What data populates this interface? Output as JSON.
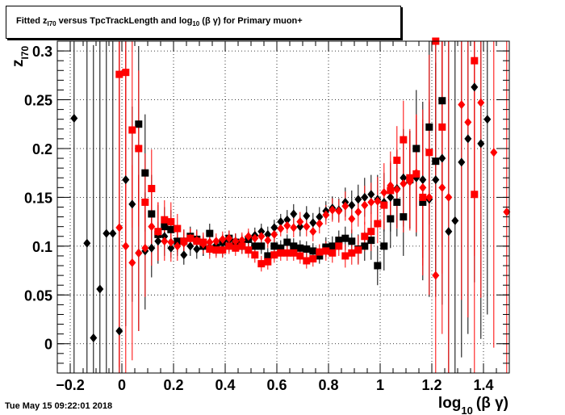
{
  "title": {
    "prefix": "Fitted  z",
    "sub": "I70",
    "middle": "  versus TpcTrackLength and log",
    "sub2": "10",
    "suffix": " (β γ) for Primary muon+"
  },
  "datestamp": "Tue May 15 09:22:01 2018",
  "colors": {
    "black_series": "#000000",
    "red_series": "#ff0000",
    "grid": "#000000",
    "frame": "#000000"
  },
  "chart_data": {
    "type": "scatter",
    "xlabel": "log",
    "xlabel_sub": "10",
    "xlabel_suffix": "(β γ)",
    "ylabel": "z",
    "ylabel_sub": "I70",
    "xlim": [
      -0.25,
      1.5
    ],
    "ylim": [
      -0.03,
      0.31
    ],
    "xticks": [
      -0.2,
      0,
      0.2,
      0.4,
      0.6,
      0.8,
      1,
      1.2,
      1.4
    ],
    "xtick_labels": [
      "−0.2",
      "0",
      "0.2",
      "0.4",
      "0.6",
      "0.8",
      "1",
      "1.2",
      "1.4"
    ],
    "yticks": [
      0,
      0.05,
      0.1,
      0.15,
      0.2,
      0.25,
      0.3
    ],
    "ytick_labels": [
      "0",
      "0.05",
      "0.1",
      "0.15",
      "0.2",
      "0.25",
      "0.3"
    ],
    "grid": true,
    "series": [
      {
        "marker": "diamond",
        "color": "#000000",
        "points": [
          [
            -0.185,
            0.231,
            0.4
          ],
          [
            -0.135,
            0.103,
            0.4
          ],
          [
            -0.11,
            0.006,
            0.3
          ],
          [
            -0.085,
            0.056,
            0.3
          ],
          [
            -0.06,
            0.113,
            0.3
          ],
          [
            -0.035,
            0.113,
            0.3
          ],
          [
            -0.01,
            0.013,
            0.3
          ],
          [
            0.015,
            0.168,
            0.15
          ],
          [
            0.04,
            0.143,
            0.1
          ],
          [
            0.065,
            0.093,
            0.08
          ],
          [
            0.09,
            0.095,
            0.06
          ],
          [
            0.115,
            0.098,
            0.03
          ],
          [
            0.14,
            0.105,
            0.02
          ],
          [
            0.165,
            0.11,
            0.02
          ],
          [
            0.19,
            0.098,
            0.01
          ],
          [
            0.215,
            0.104,
            0.01
          ],
          [
            0.24,
            0.091,
            0.01
          ],
          [
            0.265,
            0.1,
            0.01
          ],
          [
            0.29,
            0.097,
            0.01
          ],
          [
            0.315,
            0.1,
            0.01
          ],
          [
            0.34,
            0.099,
            0.008
          ],
          [
            0.365,
            0.101,
            0.008
          ],
          [
            0.39,
            0.097,
            0.008
          ],
          [
            0.415,
            0.102,
            0.008
          ],
          [
            0.44,
            0.105,
            0.008
          ],
          [
            0.465,
            0.104,
            0.008
          ],
          [
            0.49,
            0.107,
            0.008
          ],
          [
            0.515,
            0.111,
            0.008
          ],
          [
            0.54,
            0.115,
            0.008
          ],
          [
            0.565,
            0.112,
            0.008
          ],
          [
            0.59,
            0.119,
            0.008
          ],
          [
            0.615,
            0.125,
            0.008
          ],
          [
            0.64,
            0.127,
            0.01
          ],
          [
            0.665,
            0.133,
            0.01
          ],
          [
            0.69,
            0.12,
            0.01
          ],
          [
            0.715,
            0.131,
            0.01
          ],
          [
            0.74,
            0.124,
            0.01
          ],
          [
            0.765,
            0.13,
            0.01
          ],
          [
            0.79,
            0.136,
            0.01
          ],
          [
            0.815,
            0.139,
            0.012
          ],
          [
            0.84,
            0.137,
            0.012
          ],
          [
            0.865,
            0.145,
            0.015
          ],
          [
            0.89,
            0.142,
            0.015
          ],
          [
            0.915,
            0.148,
            0.015
          ],
          [
            0.94,
            0.15,
            0.02
          ],
          [
            0.965,
            0.153,
            0.02
          ],
          [
            0.99,
            0.148,
            0.025
          ],
          [
            1.015,
            0.145,
            0.03
          ],
          [
            1.04,
            0.15,
            0.035
          ],
          [
            1.065,
            0.159,
            0.04
          ],
          [
            1.09,
            0.17,
            0.05
          ],
          [
            1.115,
            0.168,
            0.05
          ],
          [
            1.14,
            0.17,
            0.06
          ],
          [
            1.165,
            0.168,
            0.08
          ],
          [
            1.19,
            0.148,
            0.1
          ],
          [
            1.215,
            0.168,
            0.12
          ],
          [
            1.24,
            0.19,
            0.15
          ],
          [
            1.265,
            0.115,
            0.2
          ],
          [
            1.29,
            0.126,
            0.2
          ],
          [
            1.315,
            0.186,
            0.2
          ],
          [
            1.34,
            0.21,
            0.2
          ],
          [
            1.365,
            0.263,
            0.2
          ],
          [
            1.39,
            0.205,
            0.2
          ],
          [
            1.415,
            0.23,
            0.2
          ]
        ]
      },
      {
        "marker": "square",
        "color": "#000000",
        "points": [
          [
            0.065,
            0.225,
            0.08
          ],
          [
            0.09,
            0.175,
            0.06
          ],
          [
            0.115,
            0.133,
            0.04
          ],
          [
            0.14,
            0.112,
            0.03
          ],
          [
            0.165,
            0.12,
            0.02
          ],
          [
            0.19,
            0.117,
            0.02
          ],
          [
            0.215,
            0.105,
            0.015
          ],
          [
            0.24,
            0.105,
            0.012
          ],
          [
            0.265,
            0.11,
            0.01
          ],
          [
            0.29,
            0.107,
            0.01
          ],
          [
            0.315,
            0.1,
            0.01
          ],
          [
            0.34,
            0.113,
            0.01
          ],
          [
            0.365,
            0.098,
            0.008
          ],
          [
            0.39,
            0.104,
            0.008
          ],
          [
            0.415,
            0.108,
            0.008
          ],
          [
            0.44,
            0.104,
            0.008
          ],
          [
            0.465,
            0.1,
            0.008
          ],
          [
            0.49,
            0.107,
            0.008
          ],
          [
            0.515,
            0.1,
            0.008
          ],
          [
            0.54,
            0.1,
            0.008
          ],
          [
            0.565,
            0.09,
            0.008
          ],
          [
            0.59,
            0.1,
            0.008
          ],
          [
            0.615,
            0.098,
            0.008
          ],
          [
            0.64,
            0.104,
            0.008
          ],
          [
            0.665,
            0.1,
            0.008
          ],
          [
            0.69,
            0.098,
            0.008
          ],
          [
            0.715,
            0.097,
            0.008
          ],
          [
            0.74,
            0.095,
            0.008
          ],
          [
            0.765,
            0.09,
            0.008
          ],
          [
            0.79,
            0.099,
            0.01
          ],
          [
            0.815,
            0.1,
            0.01
          ],
          [
            0.84,
            0.106,
            0.01
          ],
          [
            0.865,
            0.108,
            0.012
          ],
          [
            0.89,
            0.105,
            0.012
          ],
          [
            0.915,
            0.097,
            0.015
          ],
          [
            0.94,
            0.1,
            0.015
          ],
          [
            0.965,
            0.106,
            0.02
          ],
          [
            0.99,
            0.08,
            0.02
          ],
          [
            1.015,
            0.1,
            0.025
          ],
          [
            1.04,
            0.128,
            0.03
          ],
          [
            1.065,
            0.145,
            0.035
          ],
          [
            1.09,
            0.13,
            0.04
          ],
          [
            1.115,
            0.168,
            0.05
          ],
          [
            1.14,
            0.2,
            0.06
          ],
          [
            1.165,
            0.145,
            0.08
          ],
          [
            1.19,
            0.222,
            0.1
          ],
          [
            1.215,
            0.187,
            0.12
          ],
          [
            1.24,
            0.249,
            0.15
          ]
        ]
      },
      {
        "marker": "diamond",
        "color": "#ff0000",
        "points": [
          [
            -0.01,
            0.119,
            0.3
          ],
          [
            0.015,
            0.1,
            0.2
          ],
          [
            0.04,
            0.083,
            0.1
          ],
          [
            0.065,
            0.093,
            0.08
          ],
          [
            0.09,
            0.098,
            0.05
          ],
          [
            0.115,
            0.12,
            0.04
          ],
          [
            0.14,
            0.115,
            0.03
          ],
          [
            0.165,
            0.105,
            0.02
          ],
          [
            0.19,
            0.104,
            0.02
          ],
          [
            0.215,
            0.1,
            0.015
          ],
          [
            0.24,
            0.103,
            0.012
          ],
          [
            0.265,
            0.108,
            0.01
          ],
          [
            0.29,
            0.106,
            0.01
          ],
          [
            0.315,
            0.102,
            0.01
          ],
          [
            0.34,
            0.104,
            0.01
          ],
          [
            0.365,
            0.105,
            0.008
          ],
          [
            0.39,
            0.107,
            0.008
          ],
          [
            0.415,
            0.108,
            0.008
          ],
          [
            0.44,
            0.105,
            0.008
          ],
          [
            0.465,
            0.106,
            0.008
          ],
          [
            0.49,
            0.11,
            0.008
          ],
          [
            0.515,
            0.108,
            0.008
          ],
          [
            0.54,
            0.11,
            0.008
          ],
          [
            0.565,
            0.106,
            0.008
          ],
          [
            0.59,
            0.112,
            0.008
          ],
          [
            0.615,
            0.118,
            0.008
          ],
          [
            0.64,
            0.121,
            0.008
          ],
          [
            0.665,
            0.119,
            0.01
          ],
          [
            0.69,
            0.125,
            0.01
          ],
          [
            0.715,
            0.12,
            0.01
          ],
          [
            0.74,
            0.115,
            0.01
          ],
          [
            0.765,
            0.123,
            0.01
          ],
          [
            0.79,
            0.132,
            0.01
          ],
          [
            0.815,
            0.137,
            0.012
          ],
          [
            0.84,
            0.136,
            0.012
          ],
          [
            0.865,
            0.141,
            0.015
          ],
          [
            0.89,
            0.128,
            0.015
          ],
          [
            0.915,
            0.135,
            0.015
          ],
          [
            0.94,
            0.142,
            0.02
          ],
          [
            0.965,
            0.145,
            0.02
          ],
          [
            0.99,
            0.146,
            0.025
          ],
          [
            1.015,
            0.155,
            0.03
          ],
          [
            1.04,
            0.162,
            0.035
          ],
          [
            1.065,
            0.158,
            0.04
          ],
          [
            1.09,
            0.164,
            0.05
          ],
          [
            1.115,
            0.166,
            0.05
          ],
          [
            1.14,
            0.175,
            0.06
          ],
          [
            1.165,
            0.16,
            0.08
          ],
          [
            1.19,
            0.15,
            0.1
          ],
          [
            1.215,
            0.07,
            0.12
          ],
          [
            1.24,
            0.16,
            0.15
          ],
          [
            1.265,
            0.15,
            0.2
          ],
          [
            1.315,
            0.245,
            0.2
          ],
          [
            1.34,
            0.227,
            0.2
          ],
          [
            1.39,
            0.247,
            0.2
          ],
          [
            1.44,
            0.196,
            0.2
          ],
          [
            1.49,
            0.135,
            0.2
          ]
        ]
      },
      {
        "marker": "square",
        "color": "#ff0000",
        "points": [
          [
            -0.01,
            0.276,
            0.3
          ],
          [
            0.015,
            0.278,
            0.2
          ],
          [
            0.04,
            0.219,
            0.1
          ],
          [
            0.065,
            0.2,
            0.08
          ],
          [
            0.09,
            0.145,
            0.05
          ],
          [
            0.115,
            0.159,
            0.04
          ],
          [
            0.14,
            0.115,
            0.03
          ],
          [
            0.165,
            0.127,
            0.02
          ],
          [
            0.19,
            0.125,
            0.02
          ],
          [
            0.215,
            0.118,
            0.015
          ],
          [
            0.24,
            0.105,
            0.012
          ],
          [
            0.265,
            0.108,
            0.01
          ],
          [
            0.29,
            0.105,
            0.01
          ],
          [
            0.315,
            0.104,
            0.01
          ],
          [
            0.34,
            0.097,
            0.01
          ],
          [
            0.365,
            0.096,
            0.008
          ],
          [
            0.39,
            0.096,
            0.008
          ],
          [
            0.415,
            0.1,
            0.008
          ],
          [
            0.44,
            0.098,
            0.008
          ],
          [
            0.465,
            0.1,
            0.008
          ],
          [
            0.49,
            0.096,
            0.008
          ],
          [
            0.515,
            0.091,
            0.008
          ],
          [
            0.54,
            0.082,
            0.008
          ],
          [
            0.565,
            0.084,
            0.008
          ],
          [
            0.59,
            0.091,
            0.008
          ],
          [
            0.615,
            0.093,
            0.008
          ],
          [
            0.64,
            0.093,
            0.008
          ],
          [
            0.665,
            0.093,
            0.008
          ],
          [
            0.69,
            0.09,
            0.008
          ],
          [
            0.715,
            0.085,
            0.008
          ],
          [
            0.74,
            0.087,
            0.008
          ],
          [
            0.765,
            0.094,
            0.008
          ],
          [
            0.79,
            0.095,
            0.01
          ],
          [
            0.815,
            0.093,
            0.01
          ],
          [
            0.84,
            0.1,
            0.01
          ],
          [
            0.865,
            0.09,
            0.012
          ],
          [
            0.89,
            0.093,
            0.012
          ],
          [
            0.915,
            0.096,
            0.015
          ],
          [
            0.94,
            0.11,
            0.015
          ],
          [
            0.965,
            0.115,
            0.02
          ],
          [
            0.99,
            0.123,
            0.02
          ],
          [
            1.015,
            0.142,
            0.025
          ],
          [
            1.04,
            0.157,
            0.03
          ],
          [
            1.065,
            0.188,
            0.035
          ],
          [
            1.09,
            0.209,
            0.04
          ],
          [
            1.115,
            0.17,
            0.05
          ],
          [
            1.14,
            0.174,
            0.06
          ],
          [
            1.165,
            0.15,
            0.08
          ],
          [
            1.19,
            0.196,
            0.1
          ],
          [
            1.215,
            0.31,
            0.12
          ],
          [
            1.24,
            0.222,
            0.15
          ],
          [
            1.365,
            0.29,
            0.2
          ],
          [
            1.365,
            0.153,
            0.2
          ]
        ]
      }
    ]
  }
}
